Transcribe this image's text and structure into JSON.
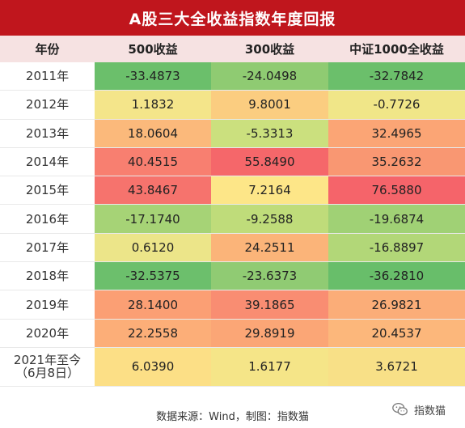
{
  "title": "A股三大全收益指数年度回报",
  "headers": [
    "年份",
    "500收益",
    "300收益",
    "中证1000全收益"
  ],
  "rows": [
    {
      "year": "2011年",
      "values": [
        "-33.4873",
        "-24.0498",
        "-32.7842"
      ],
      "colors": [
        "#6bbf6b",
        "#8fcb72",
        "#6bbf6b"
      ]
    },
    {
      "year": "2012年",
      "values": [
        "1.1832",
        "9.8001",
        "-0.7726"
      ],
      "colors": [
        "#f4e58a",
        "#fbcd80",
        "#f0e688"
      ]
    },
    {
      "year": "2013年",
      "values": [
        "18.0604",
        "-5.3313",
        "32.4965"
      ],
      "colors": [
        "#fbb97b",
        "#cbe07e",
        "#fba575"
      ]
    },
    {
      "year": "2014年",
      "values": [
        "40.4515",
        "55.8490",
        "35.2632"
      ],
      "colors": [
        "#f87f70",
        "#f5676a",
        "#f99772"
      ]
    },
    {
      "year": "2015年",
      "values": [
        "43.8467",
        "7.2164",
        "76.5880"
      ],
      "colors": [
        "#f6736d",
        "#fde688",
        "#f5646a"
      ]
    },
    {
      "year": "2016年",
      "values": [
        "-17.1740",
        "-9.2588",
        "-19.6874"
      ],
      "colors": [
        "#a6d376",
        "#bfdc7a",
        "#a0d175"
      ]
    },
    {
      "year": "2017年",
      "values": [
        "0.6120",
        "24.2511",
        "-16.8897"
      ],
      "colors": [
        "#ece589",
        "#fbb479",
        "#b2d778"
      ]
    },
    {
      "year": "2018年",
      "values": [
        "-32.5375",
        "-23.6373",
        "-36.2810"
      ],
      "colors": [
        "#6cbf6c",
        "#90cb73",
        "#68be6a"
      ]
    },
    {
      "year": "2019年",
      "values": [
        "28.1400",
        "39.1865",
        "26.9821"
      ],
      "colors": [
        "#fb9f74",
        "#f98d72",
        "#fbad78"
      ]
    },
    {
      "year": "2020年",
      "values": [
        "22.2558",
        "29.8919",
        "20.4537"
      ],
      "colors": [
        "#fcae78",
        "#fba676",
        "#fcb77b"
      ]
    },
    {
      "year": "2021年至今\n（6月8日）",
      "values": [
        "6.0390",
        "1.6177",
        "3.6721"
      ],
      "colors": [
        "#fcdf86",
        "#f5e588",
        "#f8e087"
      ]
    }
  ],
  "footer": "数据来源：Wind，制图：指数猫",
  "watermark": {
    "icon": "wechat-icon",
    "text": "指数猫"
  }
}
